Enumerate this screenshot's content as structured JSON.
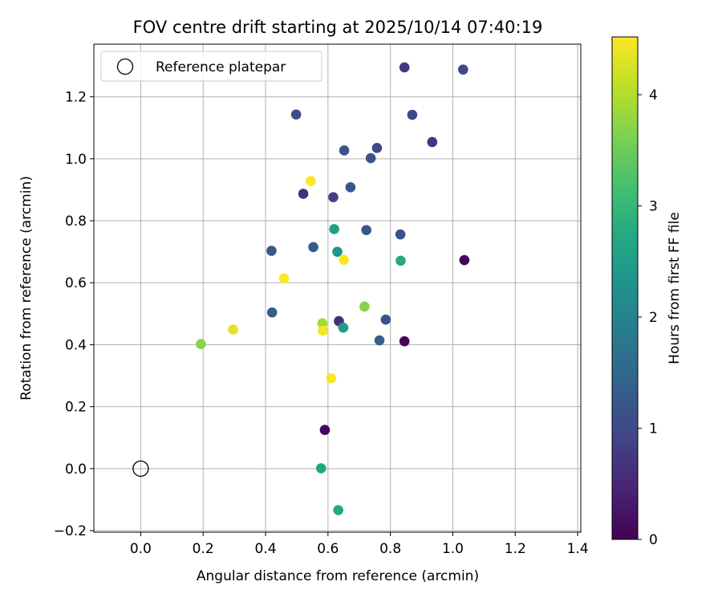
{
  "chart_data": {
    "type": "scatter",
    "title": "FOV centre drift starting at 2025/10/14 07:40:19",
    "xlabel": "Angular distance from reference (arcmin)",
    "ylabel": "Rotation from reference (arcmin)",
    "xlim": [
      -0.15,
      1.41
    ],
    "ylim": [
      -0.205,
      1.37
    ],
    "xticks": [
      0.0,
      0.2,
      0.4,
      0.6,
      0.8,
      1.0,
      1.2,
      1.4
    ],
    "xtick_labels": [
      "0.0",
      "0.2",
      "0.4",
      "0.6",
      "0.8",
      "1.0",
      "1.2",
      "1.4"
    ],
    "yticks": [
      -0.2,
      0.0,
      0.2,
      0.4,
      0.6,
      0.8,
      1.0,
      1.2
    ],
    "ytick_labels": [
      "−0.2",
      "0.0",
      "0.2",
      "0.4",
      "0.6",
      "0.8",
      "1.0",
      "1.2"
    ],
    "grid": true,
    "legend": {
      "location": "top-left",
      "entries": [
        "Reference platepar"
      ]
    },
    "reference_point": {
      "x": 0.0,
      "y": 0.0,
      "label": "Reference platepar"
    },
    "colorbar": {
      "label": "Hours from first FF file",
      "colormap": "viridis",
      "range": [
        0,
        4.52
      ],
      "ticks": [
        0,
        1,
        2,
        3,
        4
      ],
      "tick_labels": [
        "0",
        "1",
        "2",
        "3",
        "4"
      ]
    },
    "points": [
      {
        "x": 0.845,
        "y": 1.295,
        "hours": 0.75
      },
      {
        "x": 1.033,
        "y": 1.288,
        "hours": 0.95
      },
      {
        "x": 0.498,
        "y": 1.143,
        "hours": 1.05
      },
      {
        "x": 0.87,
        "y": 1.142,
        "hours": 1.0
      },
      {
        "x": 0.934,
        "y": 1.054,
        "hours": 0.7
      },
      {
        "x": 0.757,
        "y": 1.035,
        "hours": 1.0
      },
      {
        "x": 0.652,
        "y": 1.027,
        "hours": 1.2
      },
      {
        "x": 0.737,
        "y": 1.002,
        "hours": 1.15
      },
      {
        "x": 0.545,
        "y": 0.928,
        "hours": 4.5
      },
      {
        "x": 0.672,
        "y": 0.908,
        "hours": 1.2
      },
      {
        "x": 0.521,
        "y": 0.887,
        "hours": 0.6
      },
      {
        "x": 0.617,
        "y": 0.876,
        "hours": 0.85
      },
      {
        "x": 0.62,
        "y": 0.773,
        "hours": 2.55
      },
      {
        "x": 0.723,
        "y": 0.77,
        "hours": 1.2
      },
      {
        "x": 0.832,
        "y": 0.756,
        "hours": 1.15
      },
      {
        "x": 0.553,
        "y": 0.715,
        "hours": 1.3
      },
      {
        "x": 0.419,
        "y": 0.703,
        "hours": 1.25
      },
      {
        "x": 0.63,
        "y": 0.7,
        "hours": 2.35
      },
      {
        "x": 0.651,
        "y": 0.674,
        "hours": 4.5
      },
      {
        "x": 0.833,
        "y": 0.671,
        "hours": 2.75
      },
      {
        "x": 1.037,
        "y": 0.673,
        "hours": 0.05
      },
      {
        "x": 0.459,
        "y": 0.614,
        "hours": 4.5
      },
      {
        "x": 0.717,
        "y": 0.523,
        "hours": 3.7
      },
      {
        "x": 0.421,
        "y": 0.504,
        "hours": 1.3
      },
      {
        "x": 0.785,
        "y": 0.481,
        "hours": 1.15
      },
      {
        "x": 0.635,
        "y": 0.476,
        "hours": 0.6
      },
      {
        "x": 0.582,
        "y": 0.469,
        "hours": 3.9
      },
      {
        "x": 0.296,
        "y": 0.449,
        "hours": 4.3
      },
      {
        "x": 0.584,
        "y": 0.445,
        "hours": 4.45
      },
      {
        "x": 0.649,
        "y": 0.455,
        "hours": 2.45
      },
      {
        "x": 0.765,
        "y": 0.414,
        "hours": 1.4
      },
      {
        "x": 0.845,
        "y": 0.411,
        "hours": 0.05
      },
      {
        "x": 0.193,
        "y": 0.402,
        "hours": 3.7
      },
      {
        "x": 0.61,
        "y": 0.292,
        "hours": 4.5
      },
      {
        "x": 0.59,
        "y": 0.125,
        "hours": 0.05
      },
      {
        "x": 0.578,
        "y": 0.001,
        "hours": 2.7
      },
      {
        "x": 0.633,
        "y": -0.134,
        "hours": 2.75
      }
    ]
  }
}
